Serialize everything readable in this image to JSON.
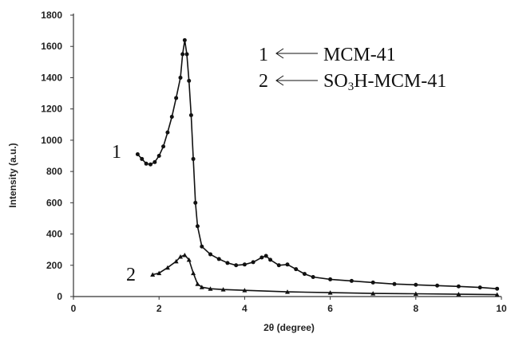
{
  "chart_data": {
    "type": "line",
    "xlabel": "2θ (degree)",
    "ylabel": "Intensity (a.u.)",
    "xlim": [
      0,
      10
    ],
    "ylim": [
      0,
      1800
    ],
    "x_ticks": [
      "0",
      "2",
      "4",
      "6",
      "8",
      "10"
    ],
    "y_ticks": [
      "0",
      "200",
      "400",
      "600",
      "800",
      "1000",
      "1200",
      "1400",
      "1600",
      "1800"
    ],
    "grid": false,
    "legend": {
      "placement": "top-right",
      "entries": [
        {
          "number": "1",
          "label": "MCM-41"
        },
        {
          "number": "2",
          "label_prefix": "SO",
          "label_sub": "3",
          "label_suffix": "H-MCM-41"
        }
      ]
    },
    "series": [
      {
        "curve_label": "1",
        "marker": "circle",
        "points": [
          [
            1.5,
            910
          ],
          [
            1.6,
            880
          ],
          [
            1.7,
            850
          ],
          [
            1.8,
            845
          ],
          [
            1.9,
            860
          ],
          [
            2.0,
            900
          ],
          [
            2.1,
            960
          ],
          [
            2.2,
            1050
          ],
          [
            2.3,
            1150
          ],
          [
            2.4,
            1270
          ],
          [
            2.5,
            1400
          ],
          [
            2.55,
            1550
          ],
          [
            2.6,
            1640
          ],
          [
            2.65,
            1550
          ],
          [
            2.7,
            1380
          ],
          [
            2.75,
            1160
          ],
          [
            2.8,
            880
          ],
          [
            2.85,
            600
          ],
          [
            2.9,
            450
          ],
          [
            3.0,
            320
          ],
          [
            3.2,
            270
          ],
          [
            3.4,
            240
          ],
          [
            3.6,
            215
          ],
          [
            3.8,
            200
          ],
          [
            4.0,
            205
          ],
          [
            4.2,
            220
          ],
          [
            4.4,
            250
          ],
          [
            4.5,
            260
          ],
          [
            4.6,
            235
          ],
          [
            4.8,
            200
          ],
          [
            5.0,
            205
          ],
          [
            5.2,
            175
          ],
          [
            5.4,
            145
          ],
          [
            5.6,
            125
          ],
          [
            6.0,
            110
          ],
          [
            6.5,
            100
          ],
          [
            7.0,
            90
          ],
          [
            7.5,
            80
          ],
          [
            8.0,
            75
          ],
          [
            8.5,
            70
          ],
          [
            9.0,
            65
          ],
          [
            9.5,
            58
          ],
          [
            9.9,
            50
          ]
        ]
      },
      {
        "curve_label": "2",
        "marker": "triangle",
        "points": [
          [
            1.85,
            140
          ],
          [
            2.0,
            150
          ],
          [
            2.2,
            185
          ],
          [
            2.4,
            225
          ],
          [
            2.5,
            255
          ],
          [
            2.6,
            265
          ],
          [
            2.7,
            235
          ],
          [
            2.8,
            150
          ],
          [
            2.9,
            80
          ],
          [
            3.0,
            60
          ],
          [
            3.2,
            50
          ],
          [
            3.5,
            45
          ],
          [
            4.0,
            40
          ],
          [
            5.0,
            30
          ],
          [
            6.0,
            25
          ],
          [
            7.0,
            20
          ],
          [
            8.0,
            18
          ],
          [
            9.0,
            15
          ],
          [
            9.9,
            12
          ]
        ]
      }
    ]
  }
}
